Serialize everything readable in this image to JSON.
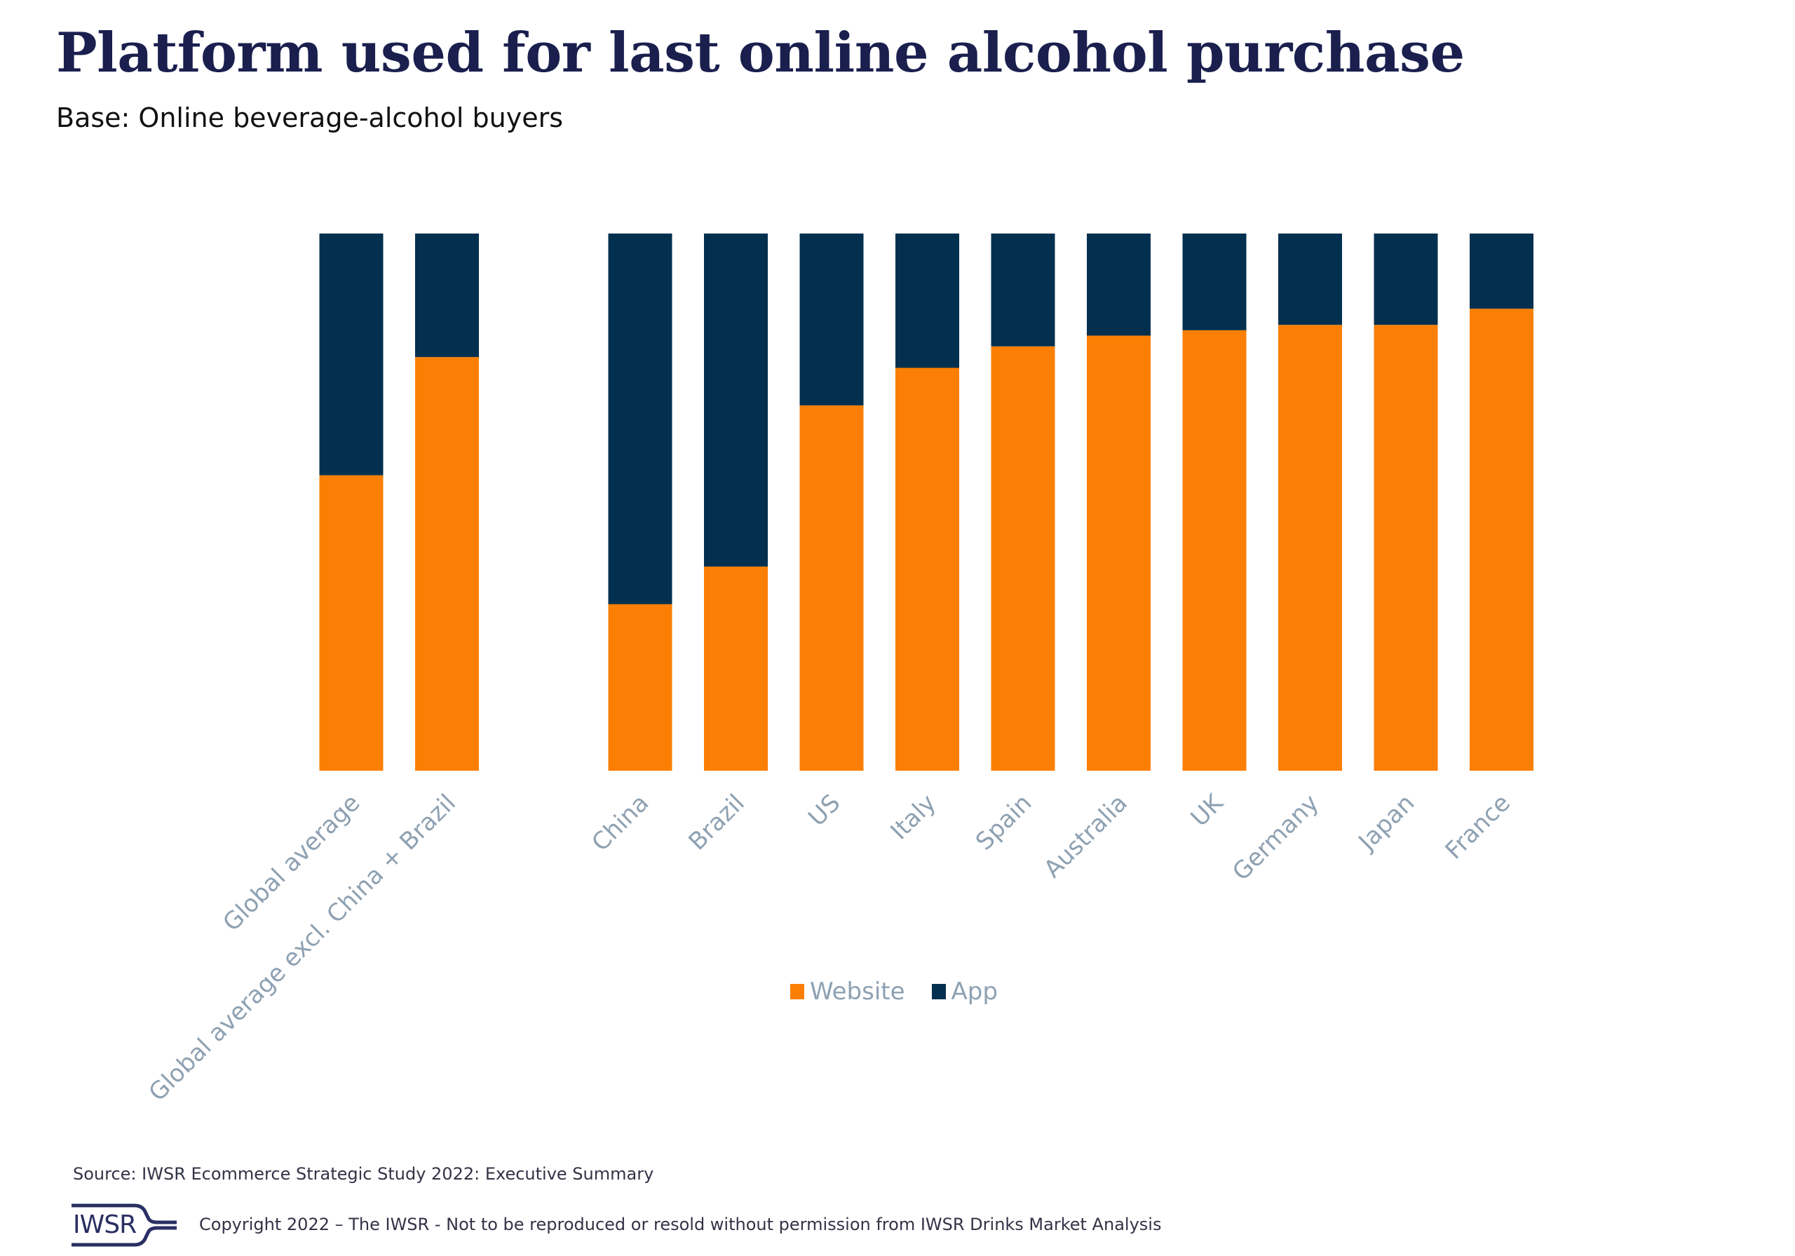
{
  "header": {
    "title": "Platform used for last online alcohol purchase",
    "subtitle": "Base: Online beverage-alcohol buyers"
  },
  "colors": {
    "website": "#fb7f04",
    "app": "#03304f",
    "title": "#1a1f4e",
    "axis_label": "#8ea1b2"
  },
  "chart_data": {
    "type": "bar",
    "stacked": true,
    "percent_stacked": true,
    "title": "Platform used for last online alcohol purchase",
    "subtitle": "Base: Online beverage-alcohol buyers",
    "xlabel": "",
    "ylabel": "",
    "ylim": [
      0,
      100
    ],
    "grid": false,
    "legend_position": "bottom",
    "categories": [
      "Global average",
      "Global average excl. China + Brazil",
      "China",
      "Brazil",
      "US",
      "Italy",
      "Spain",
      "Australia",
      "UK",
      "Germany",
      "Japan",
      "France"
    ],
    "groups": [
      [
        0,
        1
      ],
      [
        2,
        3,
        4,
        5,
        6,
        7,
        8,
        9,
        10,
        11
      ]
    ],
    "series": [
      {
        "name": "Website",
        "color": "#fb7f04",
        "values": [
          55,
          77,
          31,
          38,
          68,
          75,
          79,
          81,
          82,
          83,
          83,
          86
        ]
      },
      {
        "name": "App",
        "color": "#03304f",
        "values": [
          45,
          23,
          69,
          62,
          32,
          25,
          21,
          19,
          18,
          17,
          17,
          14
        ]
      }
    ]
  },
  "legend": {
    "items": [
      {
        "label": "Website",
        "color": "#fb7f04"
      },
      {
        "label": "App",
        "color": "#03304f"
      }
    ]
  },
  "footer": {
    "source": "Source: IWSR Ecommerce Strategic Study 2022: Executive Summary",
    "logo_text": "IWSR",
    "copyright": "Copyright 2022 – The IWSR - Not to be reproduced or resold without permission from IWSR Drinks Market Analysis"
  }
}
